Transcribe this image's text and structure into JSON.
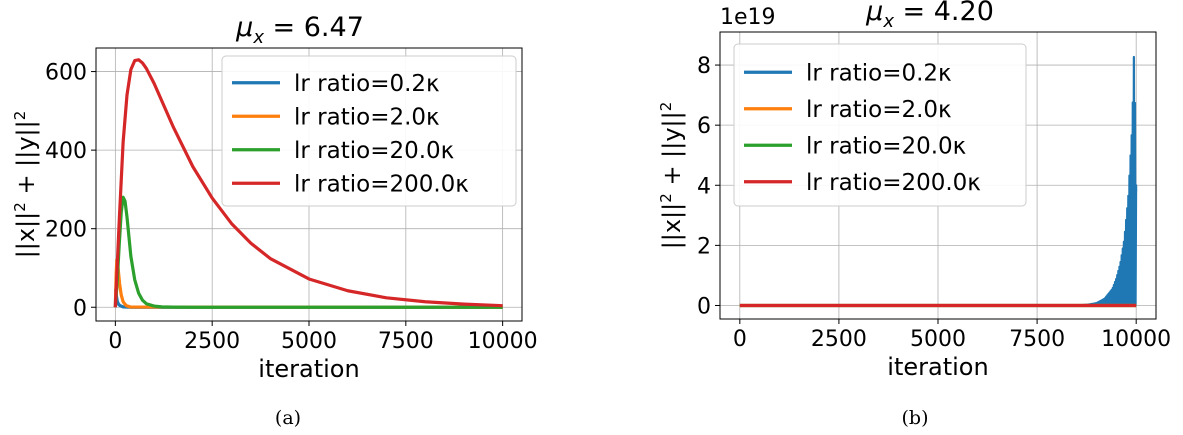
{
  "chart_data": [
    {
      "type": "line",
      "panel": "a",
      "caption": "(a)",
      "title_main": "μ",
      "title_sub": "x",
      "title_value": " = 6.47",
      "xlabel": "iteration",
      "ylabel_parts": [
        "||x||",
        "2",
        " + ||y||",
        "2"
      ],
      "xlim": [
        -500,
        10500
      ],
      "ylim": [
        -35,
        660
      ],
      "xticks": [
        0,
        2500,
        5000,
        7500,
        10000
      ],
      "yticks": [
        0,
        200,
        400,
        600
      ],
      "grid": true,
      "legend_position": "upper-right",
      "series": [
        {
          "name": "lr ratio=0.2κ",
          "color": "#1f77b4",
          "x": [
            0,
            10,
            25,
            50,
            80,
            120,
            200,
            400,
            10000
          ],
          "y": [
            0,
            45,
            30,
            15,
            8,
            4,
            1,
            0,
            0
          ]
        },
        {
          "name": "lr ratio=2.0κ",
          "color": "#ff7f0e",
          "x": [
            0,
            20,
            40,
            60,
            80,
            110,
            150,
            200,
            280,
            400,
            10000
          ],
          "y": [
            0,
            85,
            120,
            112,
            90,
            60,
            32,
            14,
            4,
            0.5,
            0
          ]
        },
        {
          "name": "lr ratio=20.0κ",
          "color": "#2ca02c",
          "x": [
            0,
            50,
            100,
            150,
            200,
            250,
            300,
            350,
            400,
            500,
            600,
            700,
            800,
            1000,
            1200,
            1500,
            2000,
            10000
          ],
          "y": [
            0,
            70,
            160,
            240,
            280,
            270,
            230,
            180,
            130,
            70,
            36,
            18,
            9,
            3,
            1,
            0.3,
            0,
            0
          ]
        },
        {
          "name": "lr ratio=200.0κ",
          "color": "#d62728",
          "x": [
            0,
            100,
            200,
            300,
            400,
            500,
            600,
            700,
            800,
            1000,
            1200,
            1500,
            2000,
            2500,
            3000,
            3500,
            4000,
            5000,
            6000,
            7000,
            8000,
            9000,
            10000
          ],
          "y": [
            0,
            220,
            420,
            540,
            605,
            628,
            630,
            622,
            608,
            570,
            525,
            458,
            358,
            278,
            213,
            163,
            124,
            72,
            42,
            24,
            14,
            8,
            4
          ]
        }
      ],
      "legend": [
        "lr ratio=0.2κ",
        "lr ratio=2.0κ",
        "lr ratio=20.0κ",
        "lr ratio=200.0κ"
      ]
    },
    {
      "type": "line",
      "panel": "b",
      "caption": "(b)",
      "title_main": "μ",
      "title_sub": "x",
      "title_value": " = 4.20",
      "offset_text": "1e19",
      "xlabel": "iteration",
      "ylabel_parts": [
        "||x||",
        "2",
        " + ||y||",
        "2"
      ],
      "xlim": [
        -500,
        10500
      ],
      "ylim": [
        -0.45,
        9.1
      ],
      "xticks": [
        0,
        2500,
        5000,
        7500,
        10000
      ],
      "yticks": [
        0,
        2,
        4,
        6,
        8
      ],
      "grid": true,
      "legend_position": "upper-left",
      "series": [
        {
          "name": "lr ratio=0.2κ",
          "color": "#1f77b4",
          "oscillating": true,
          "x": [
            0,
            8500,
            8800,
            9000,
            9200,
            9400,
            9500,
            9600,
            9700,
            9800,
            9900,
            9950,
            10000
          ],
          "y": [
            0,
            0,
            0.03,
            0.08,
            0.22,
            0.55,
            0.9,
            1.4,
            2.2,
            3.6,
            6.0,
            8.7,
            3.8
          ]
        },
        {
          "name": "lr ratio=2.0κ",
          "color": "#ff7f0e",
          "x": [
            0,
            10000
          ],
          "y": [
            0,
            0
          ]
        },
        {
          "name": "lr ratio=20.0κ",
          "color": "#2ca02c",
          "x": [
            0,
            10000
          ],
          "y": [
            0,
            0
          ]
        },
        {
          "name": "lr ratio=200.0κ",
          "color": "#d62728",
          "x": [
            0,
            10000
          ],
          "y": [
            0,
            0
          ]
        }
      ],
      "legend": [
        "lr ratio=0.2κ",
        "lr ratio=2.0κ",
        "lr ratio=20.0κ",
        "lr ratio=200.0κ"
      ]
    }
  ]
}
